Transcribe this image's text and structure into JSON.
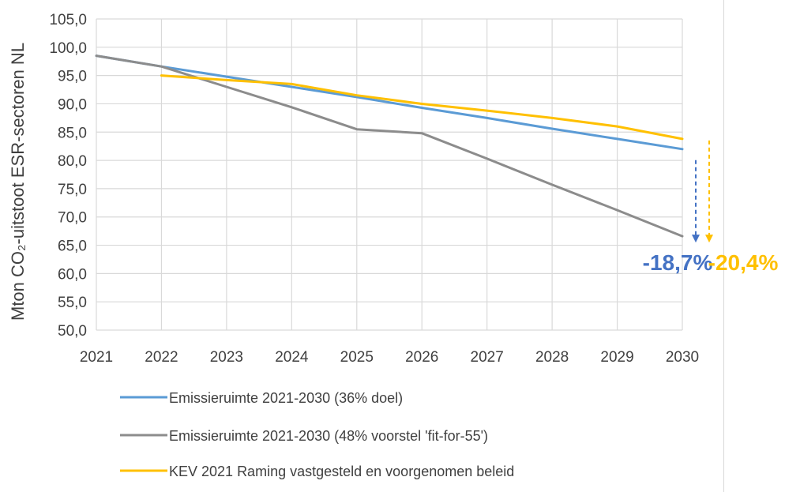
{
  "chart_data": {
    "type": "line",
    "title": "",
    "xlabel": "",
    "ylabel": "Mton CO₂-uitstoot ESR-sectoren NL",
    "x": [
      2021,
      2022,
      2023,
      2024,
      2025,
      2026,
      2027,
      2028,
      2029,
      2030
    ],
    "ylim": [
      50.0,
      105.0
    ],
    "yticks": [
      "50,0",
      "55,0",
      "60,0",
      "65,0",
      "70,0",
      "75,0",
      "80,0",
      "85,0",
      "90,0",
      "95,0",
      "100,0",
      "105,0"
    ],
    "xticks": [
      "2021",
      "2022",
      "2023",
      "2024",
      "2025",
      "2026",
      "2027",
      "2028",
      "2029",
      "2030"
    ],
    "grid": true,
    "legend_position": "bottom",
    "series": [
      {
        "name": "Emissieruimte 2021-2030 (36% doel)",
        "color": "#5b9bd5",
        "values": [
          98.5,
          96.6,
          94.8,
          93.0,
          91.2,
          89.3,
          87.5,
          85.6,
          83.8,
          82.0
        ]
      },
      {
        "name": "Emissieruimte 2021-2030 (48% voorstel 'fit-for-55')",
        "color": "#8c8c8c",
        "values": [
          98.5,
          96.6,
          93.0,
          89.4,
          85.5,
          84.8,
          80.3,
          75.7,
          71.2,
          66.6
        ]
      },
      {
        "name": "KEV 2021 Raming vastgesteld en voorgenomen beleid",
        "color": "#ffc000",
        "values": [
          null,
          95.0,
          94.2,
          93.5,
          91.5,
          90.0,
          88.8,
          87.5,
          86.0,
          83.8
        ]
      }
    ],
    "annotations": [
      {
        "text": "-18,7%",
        "color": "#4472c4",
        "arrow_color": "#4472c4"
      },
      {
        "text": "-20,4%",
        "color": "#ffc000",
        "arrow_color": "#ffc000"
      }
    ]
  }
}
